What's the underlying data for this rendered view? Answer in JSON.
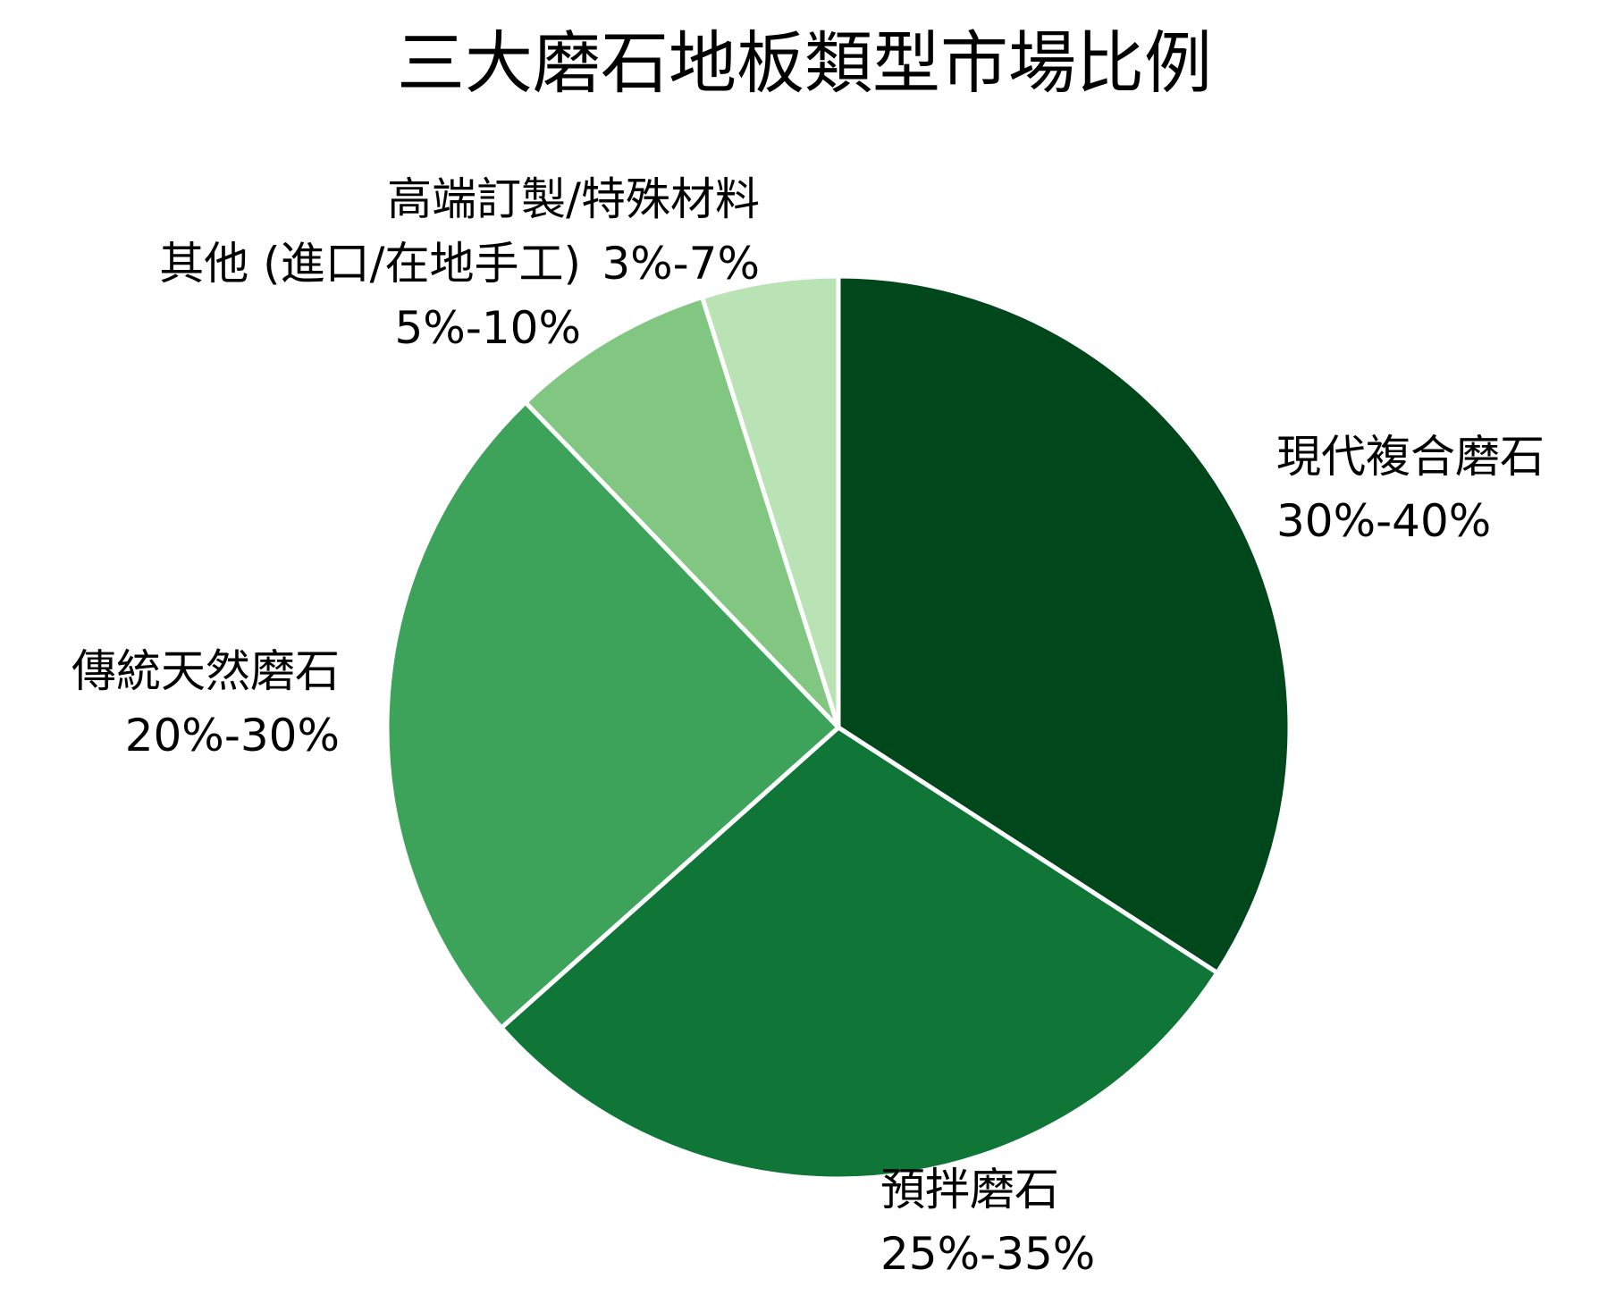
{
  "chart_data": {
    "type": "pie",
    "title": "三大磨石地板類型市場比例",
    "start_angle_deg": 0,
    "direction": "clockwise",
    "slices": [
      {
        "name": "現代複合磨石",
        "range": "30%-40%",
        "value": 35,
        "color": "#00471b"
      },
      {
        "name": "預拌磨石",
        "range": "25%-35%",
        "value": 30,
        "color": "#0f7637"
      },
      {
        "name": "傳統天然磨石",
        "range": "20%-30%",
        "value": 25,
        "color": "#3da35b"
      },
      {
        "name": "其他 (進口/在地手工)",
        "range": "5%-10%",
        "value": 7.5,
        "color": "#81c782"
      },
      {
        "name": "高端訂製/特殊材料",
        "range": "3%-7%",
        "value": 5,
        "color": "#b9e3b5"
      }
    ],
    "legend": "none"
  }
}
